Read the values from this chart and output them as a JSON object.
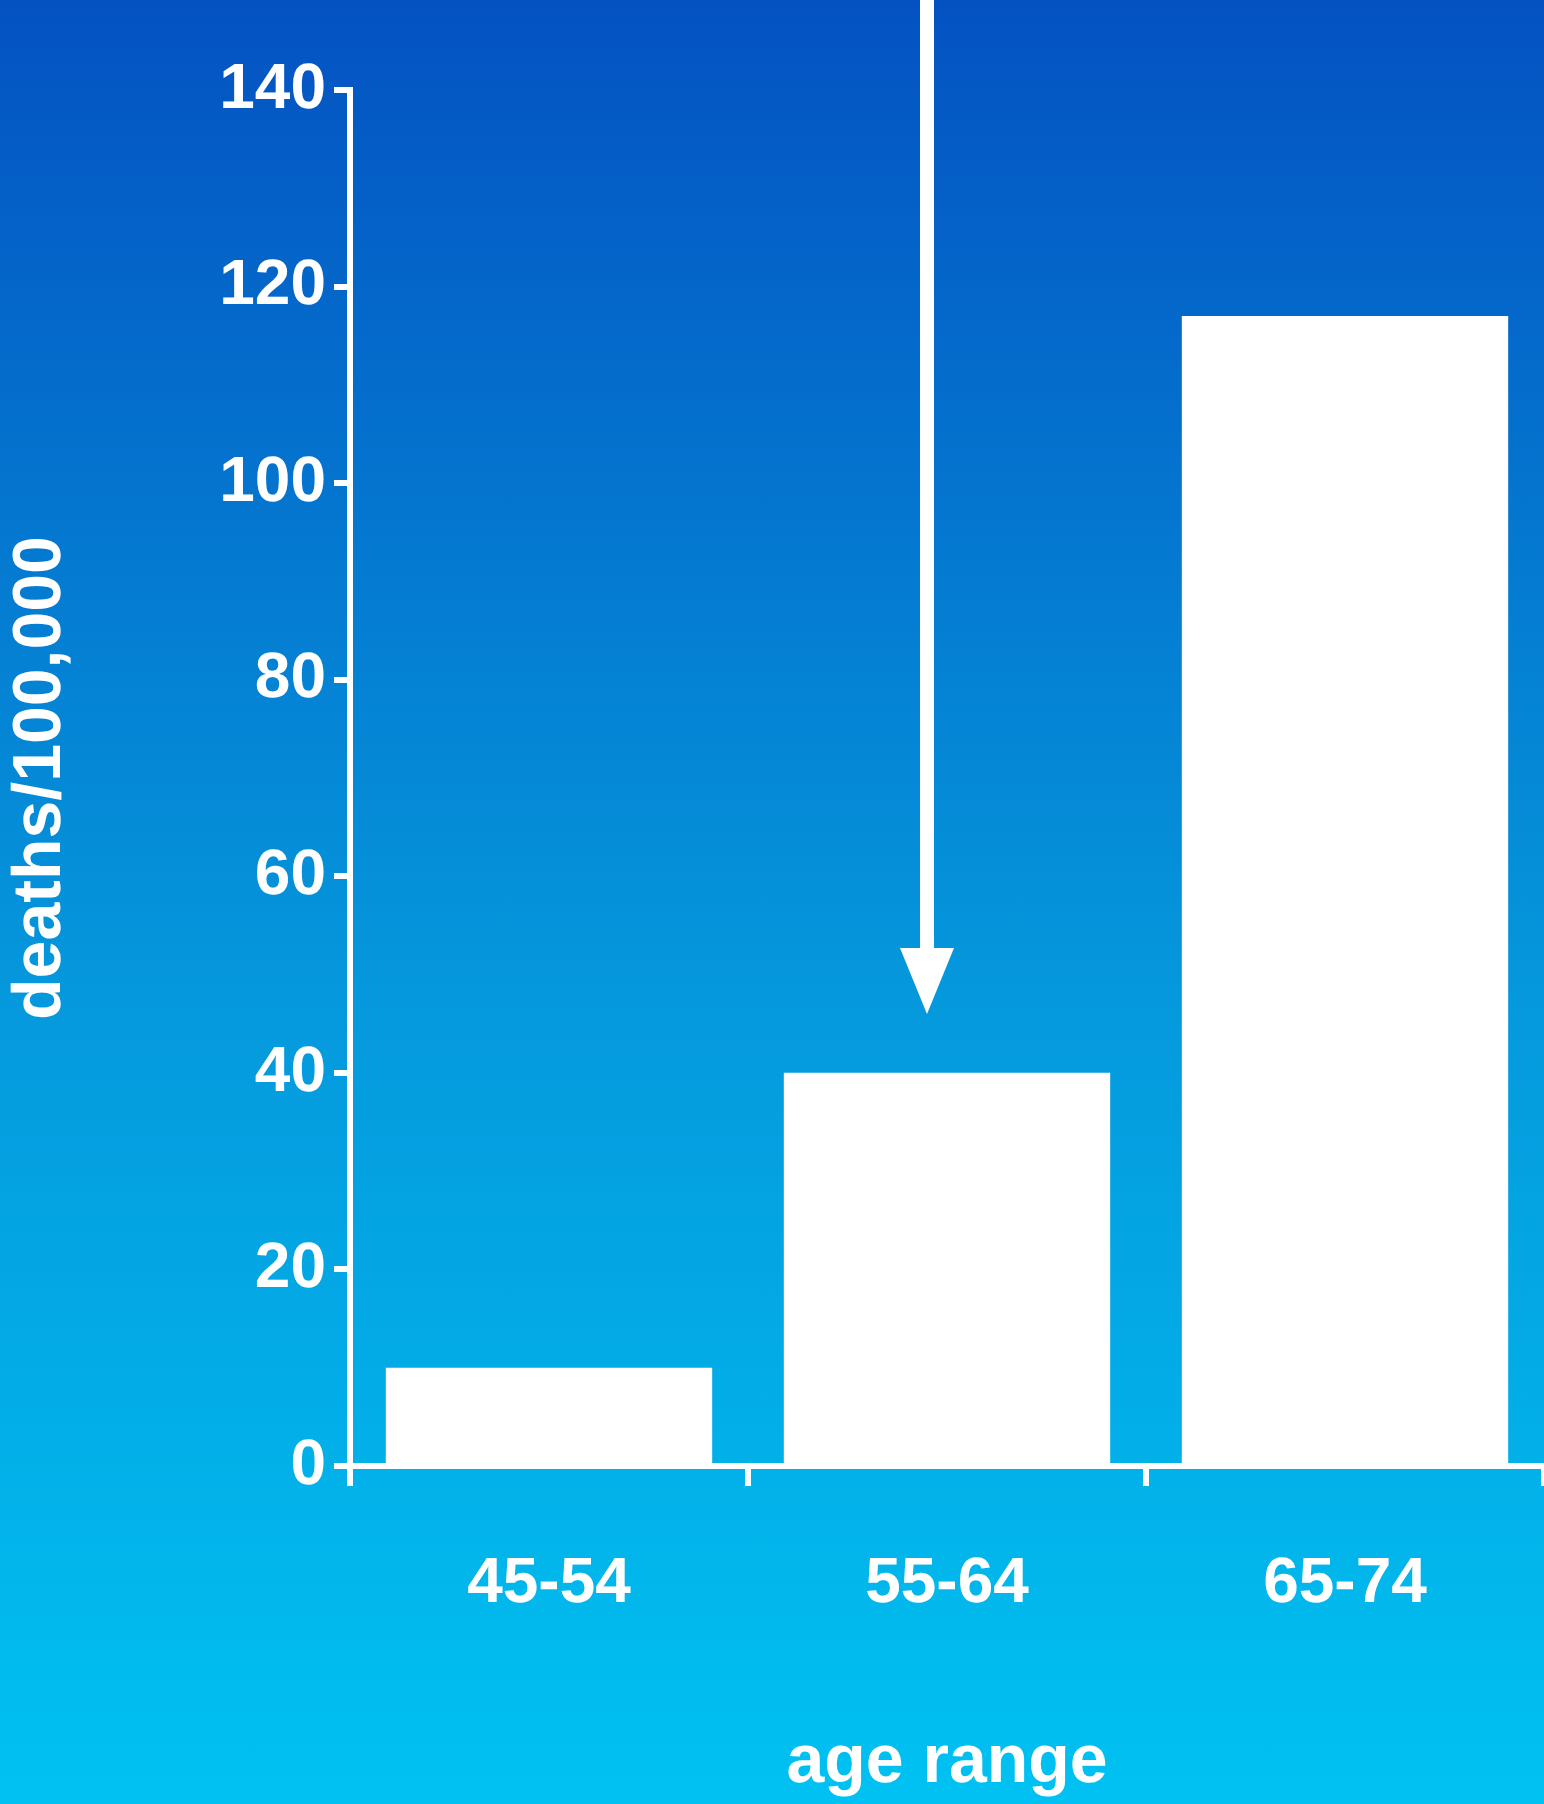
{
  "chart_data": {
    "type": "bar",
    "xlabel": "age range",
    "ylabel": "deaths/100,000",
    "categories": [
      "45-54",
      "55-64",
      "65-74"
    ],
    "values": [
      10,
      40,
      117
    ],
    "color": "#ffffff",
    "ylim": [
      0,
      140
    ],
    "yticks": [
      0,
      20,
      40,
      60,
      80,
      100,
      120,
      140
    ],
    "grid": false
  }
}
